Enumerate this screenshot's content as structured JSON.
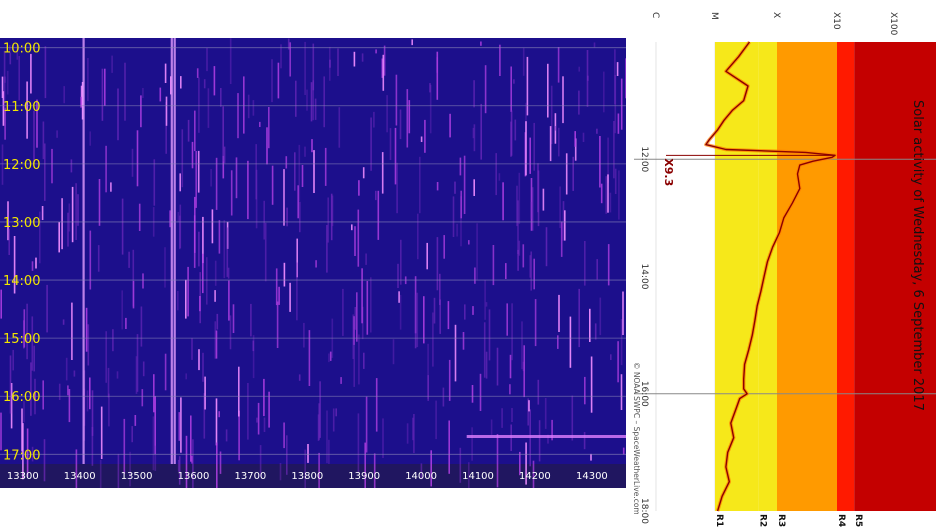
{
  "title": "Solar activity of Wednesday, 6 September 2017",
  "credit": "© NOAA SWPC – SpaceWeatherLive.com",
  "colors": {
    "spectro_bg": "#1c0f8c",
    "spectro_bottom": "#201660",
    "time_label": "#f2e600",
    "flux_line": "#8b0000",
    "flux_glow": "#ff7a00",
    "band_R1": "#f6e81a",
    "band_R2": "#f6e81a",
    "band_R3": "#ff9a00",
    "band_R4": "#ff1a00",
    "band_R5": "#c40000"
  },
  "chart_data": [
    {
      "type": "heatmap",
      "title": "",
      "y_tick_labels": [
        "10:00",
        "11:00",
        "12:00",
        "13:00",
        "14:00",
        "15:00",
        "16:00",
        "17:00"
      ],
      "x_tick_labels": [
        "13300",
        "13400",
        "13500",
        "13600",
        "13700",
        "13800",
        "13900",
        "14000",
        "14100",
        "14200",
        "14300"
      ],
      "xlim": [
        13260,
        14360
      ],
      "ylim": [
        "09:50",
        "17:10"
      ]
    },
    {
      "type": "line",
      "title": "Solar activity of Wednesday, 6 September 2017",
      "time_tick_labels": [
        "12:00",
        "14:00",
        "16:00",
        "18:00"
      ],
      "class_tick_labels": [
        "C",
        "M",
        "X",
        "X10",
        "X100"
      ],
      "radio_blackout_labels": [
        "R1",
        "R2",
        "R3",
        "R4",
        "R5"
      ],
      "peak_annotation": "X9.3",
      "x_range": [
        "10:00",
        "18:00"
      ],
      "flux_scale": "log",
      "series": [
        {
          "x": [
            "10:00",
            "10:15",
            "10:30",
            "10:45",
            "11:00",
            "11:10",
            "11:20",
            "11:30",
            "11:40",
            "11:45",
            "11:50",
            "11:53",
            "11:56",
            "11:58",
            "12:02",
            "12:06",
            "12:15",
            "12:30",
            "12:45",
            "13:00",
            "13:15",
            "13:30",
            "13:45",
            "14:00",
            "14:15",
            "14:30",
            "14:45",
            "15:00",
            "15:15",
            "15:30",
            "15:45",
            "15:55",
            "16:00",
            "16:05",
            "16:15",
            "16:30",
            "16:45",
            "17:00",
            "17:15",
            "17:30",
            "17:45",
            "18:00"
          ],
          "values": [
            3.6e-05,
            2.4e-05,
            1.5e-05,
            3.4e-05,
            2.9e-05,
            1.9e-05,
            1.4e-05,
            1.1e-05,
            8e-06,
            7e-06,
            1.5e-05,
            0.0003,
            0.00093,
            0.00083,
            0.0004,
            0.00024,
            0.00022,
            0.00024,
            0.00018,
            0.00013,
            0.00011,
            8.5e-05,
            7e-05,
            6.2e-05,
            5.5e-05,
            4.8e-05,
            4.4e-05,
            4e-05,
            3.5e-05,
            3e-05,
            2.9e-05,
            2.9e-05,
            3.3e-05,
            2.5e-05,
            2.2e-05,
            1.8e-05,
            2e-05,
            1.6e-05,
            1.5e-05,
            1.7e-05,
            1.3e-05,
            1.1e-05
          ]
        }
      ]
    }
  ]
}
